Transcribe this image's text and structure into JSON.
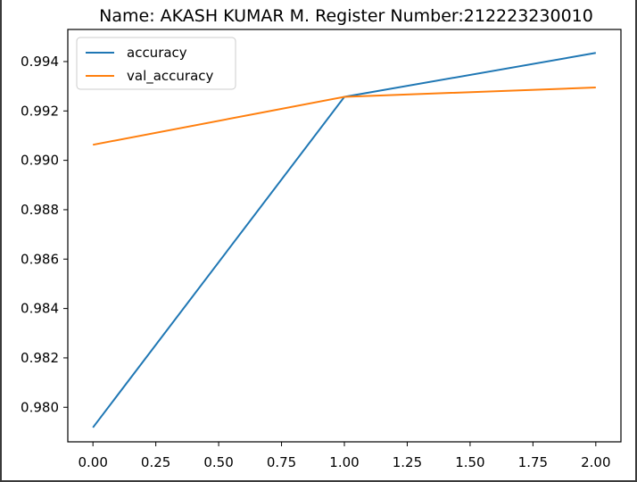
{
  "chart_data": {
    "type": "line",
    "title": "Name: AKASH KUMAR M.  Register Number:212223230010",
    "x": [
      0.0,
      1.0,
      2.0
    ],
    "series": [
      {
        "name": "accuracy",
        "values": [
          0.97918,
          0.99257,
          0.99435
        ],
        "color": "#1f77b4"
      },
      {
        "name": "val_accuracy",
        "values": [
          0.99063,
          0.99257,
          0.99295
        ],
        "color": "#ff7f0e"
      }
    ],
    "xlim": [
      -0.1,
      2.1
    ],
    "ylim": [
      0.9786,
      0.9953
    ],
    "xticks": [
      "0.00",
      "0.25",
      "0.50",
      "0.75",
      "1.00",
      "1.25",
      "1.50",
      "1.75",
      "2.00"
    ],
    "xtick_values": [
      0.0,
      0.25,
      0.5,
      0.75,
      1.0,
      1.25,
      1.5,
      1.75,
      2.0
    ],
    "yticks": [
      "0.980",
      "0.982",
      "0.984",
      "0.986",
      "0.988",
      "0.990",
      "0.992",
      "0.994"
    ],
    "ytick_values": [
      0.98,
      0.982,
      0.984,
      0.986,
      0.988,
      0.99,
      0.992,
      0.994
    ],
    "grid": false,
    "legend": "top-left"
  }
}
